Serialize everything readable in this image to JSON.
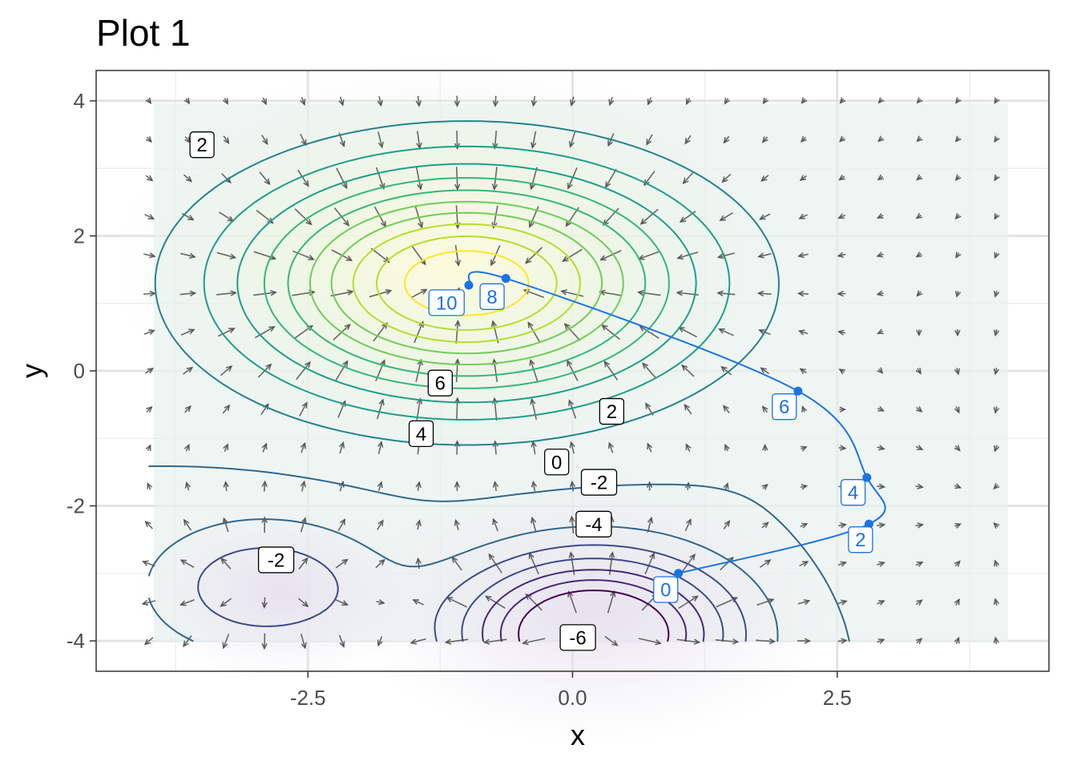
{
  "chart_data": {
    "type": "contour",
    "title": "Plot 1",
    "xlabel": "x",
    "ylabel": "y",
    "xlim": [
      -4.5,
      4.5
    ],
    "ylim": [
      -4.45,
      4.45
    ],
    "x_ticks": [
      -2.5,
      0,
      2.5
    ],
    "x_tick_labels": [
      "-2.5",
      "0.0",
      "2.5"
    ],
    "y_ticks": [
      -4,
      -2,
      0,
      2,
      4
    ],
    "y_tick_labels": [
      "-4",
      "-2",
      "0",
      "2",
      "4"
    ],
    "grid": true,
    "contour_levels": [
      -6,
      -5,
      -4,
      -3,
      -2,
      -1,
      0,
      1,
      2,
      3,
      4,
      5,
      6,
      7,
      8,
      9,
      10
    ],
    "contour_labels": [
      {
        "text": "2",
        "x": -3.5,
        "y": 3.35
      },
      {
        "text": "6",
        "x": -1.25,
        "y": -0.18
      },
      {
        "text": "4",
        "x": -1.43,
        "y": -0.93
      },
      {
        "text": "2",
        "x": 0.37,
        "y": -0.6
      },
      {
        "text": "0",
        "x": -0.15,
        "y": -1.35
      },
      {
        "text": "-2",
        "x": 0.25,
        "y": -1.65
      },
      {
        "text": "-4",
        "x": 0.2,
        "y": -2.27
      },
      {
        "text": "-2",
        "x": -2.8,
        "y": -2.8
      },
      {
        "text": "-6",
        "x": 0.05,
        "y": -3.95
      }
    ],
    "path_points": [
      {
        "x": 1.0,
        "y": -3.0
      },
      {
        "x": 2.8,
        "y": -2.27
      },
      {
        "x": 2.78,
        "y": -1.58
      },
      {
        "x": 2.13,
        "y": -0.3
      },
      {
        "x": -0.63,
        "y": 1.37
      },
      {
        "x": -0.98,
        "y": 1.27
      }
    ],
    "path_labels": [
      {
        "text": "0",
        "x": 0.88,
        "y": -3.24
      },
      {
        "text": "2",
        "x": 2.72,
        "y": -2.5
      },
      {
        "text": "4",
        "x": 2.65,
        "y": -1.8
      },
      {
        "text": "6",
        "x": 2.0,
        "y": -0.53
      },
      {
        "text": "8",
        "x": -0.76,
        "y": 1.1
      },
      {
        "text": "10",
        "x": -1.19,
        "y": 1.01
      }
    ],
    "colors": {
      "path": "#1a73e8",
      "arrow": "#4d4d4d",
      "panel_border": "#333333",
      "grid": "#ebebeb"
    }
  }
}
